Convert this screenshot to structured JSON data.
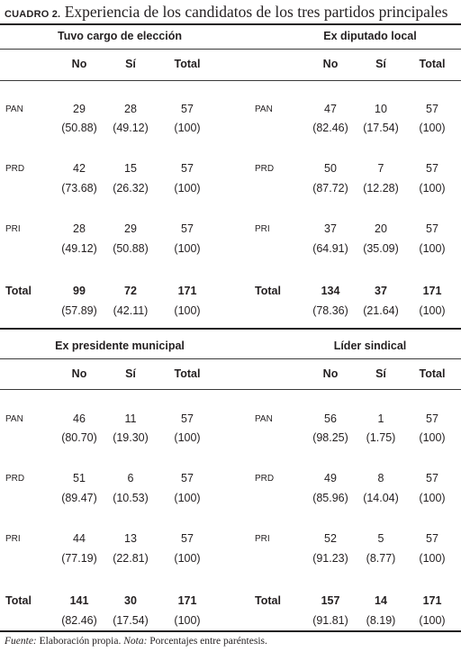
{
  "title": {
    "label": "CUADRO 2.",
    "text": "Experiencia de los candidatos de los tres partidos principales"
  },
  "column_headers": {
    "no": "No",
    "si": "Sí",
    "total": "Total"
  },
  "panels": [
    {
      "title": "Tuvo cargo de elección",
      "rows": [
        {
          "party": "PAN",
          "no": "29",
          "si": "28",
          "total": "57",
          "no_pct": "(50.88)",
          "si_pct": "(49.12)",
          "total_pct": "(100)"
        },
        {
          "party": "PRD",
          "no": "42",
          "si": "15",
          "total": "57",
          "no_pct": "(73.68)",
          "si_pct": "(26.32)",
          "total_pct": "(100)"
        },
        {
          "party": "PRI",
          "no": "28",
          "si": "29",
          "total": "57",
          "no_pct": "(49.12)",
          "si_pct": "(50.88)",
          "total_pct": "(100)"
        }
      ],
      "total": {
        "label": "Total",
        "no": "99",
        "si": "72",
        "total": "171",
        "no_pct": "(57.89)",
        "si_pct": "(42.11)",
        "total_pct": "(100)"
      }
    },
    {
      "title": "Ex diputado local",
      "rows": [
        {
          "party": "PAN",
          "no": "47",
          "si": "10",
          "total": "57",
          "no_pct": "(82.46)",
          "si_pct": "(17.54)",
          "total_pct": "(100)"
        },
        {
          "party": "PRD",
          "no": "50",
          "si": "7",
          "total": "57",
          "no_pct": "(87.72)",
          "si_pct": "(12.28)",
          "total_pct": "(100)"
        },
        {
          "party": "PRI",
          "no": "37",
          "si": "20",
          "total": "57",
          "no_pct": "(64.91)",
          "si_pct": "(35.09)",
          "total_pct": "(100)"
        }
      ],
      "total": {
        "label": "Total",
        "no": "134",
        "si": "37",
        "total": "171",
        "no_pct": "(78.36)",
        "si_pct": "(21.64)",
        "total_pct": "(100)"
      }
    },
    {
      "title": "Ex presidente municipal",
      "rows": [
        {
          "party": "PAN",
          "no": "46",
          "si": "11",
          "total": "57",
          "no_pct": "(80.70)",
          "si_pct": "(19.30)",
          "total_pct": "(100)"
        },
        {
          "party": "PRD",
          "no": "51",
          "si": "6",
          "total": "57",
          "no_pct": "(89.47)",
          "si_pct": "(10.53)",
          "total_pct": "(100)"
        },
        {
          "party": "PRI",
          "no": "44",
          "si": "13",
          "total": "57",
          "no_pct": "(77.19)",
          "si_pct": "(22.81)",
          "total_pct": "(100)"
        }
      ],
      "total": {
        "label": "Total",
        "no": "141",
        "si": "30",
        "total": "171",
        "no_pct": "(82.46)",
        "si_pct": "(17.54)",
        "total_pct": "(100)"
      }
    },
    {
      "title": "Líder sindical",
      "rows": [
        {
          "party": "PAN",
          "no": "56",
          "si": "1",
          "total": "57",
          "no_pct": "(98.25)",
          "si_pct": "(1.75)",
          "total_pct": "(100)"
        },
        {
          "party": "PRD",
          "no": "49",
          "si": "8",
          "total": "57",
          "no_pct": "(85.96)",
          "si_pct": "(14.04)",
          "total_pct": "(100)"
        },
        {
          "party": "PRI",
          "no": "52",
          "si": "5",
          "total": "57",
          "no_pct": "(91.23)",
          "si_pct": "(8.77)",
          "total_pct": "(100)"
        }
      ],
      "total": {
        "label": "Total",
        "no": "157",
        "si": "14",
        "total": "171",
        "no_pct": "(91.81)",
        "si_pct": "(8.19)",
        "total_pct": "(100)"
      }
    }
  ],
  "footnote": {
    "fuente_label": "Fuente:",
    "fuente_text": " Elaboración propia. ",
    "nota_label": "Nota:",
    "nota_text": " Porcentajes entre paréntesis."
  }
}
